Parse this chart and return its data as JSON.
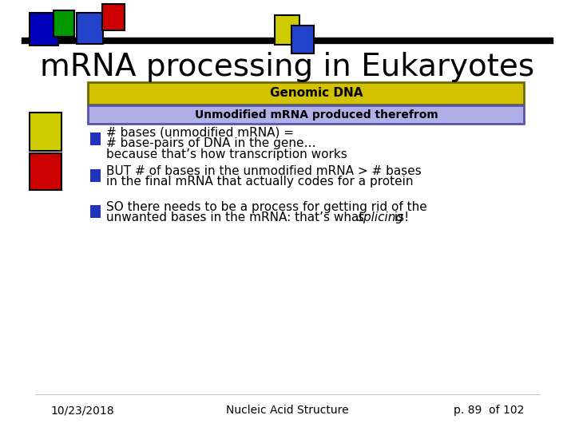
{
  "title": "mRNA processing in Eukaryotes",
  "title_fontsize": 28,
  "genomic_dna_label": "Genomic DNA",
  "unmodified_mrna_label": "Unmodified mRNA produced therefrom",
  "bullet1_line1": "# bases (unmodified mRNA) =",
  "bullet1_line2": "# base-pairs of DNA in the gene…",
  "bullet1_line3": "because that’s how transcription works",
  "bullet2_line1": "BUT # of bases in the unmodified mRNA > # bases",
  "bullet2_line2": "in the final mRNA that actually codes for a protein",
  "bullet3_line1": "SO there needs to be a process for getting rid of the",
  "bullet3_line2": "unwanted bases in the mRNA: that’s what ",
  "bullet3_italic": "splicing",
  "bullet3_end": " is!",
  "footer_left": "10/23/2018",
  "footer_center": "Nucleic Acid Structure",
  "footer_right": "p. 89  of 102",
  "bg_color": "#ffffff",
  "genomic_bar_color": "#d4c200",
  "genomic_bar_border": "#6b6b00",
  "unmodified_bar_color": "#b0b0e8",
  "unmodified_bar_border": "#5555aa",
  "bullet_color": "#2233bb",
  "text_color": "#000000",
  "footer_color": "#000000",
  "line_thickness": 6
}
